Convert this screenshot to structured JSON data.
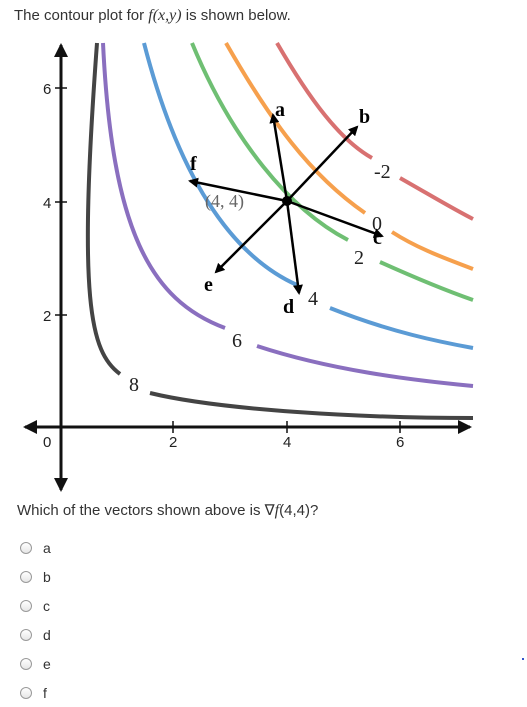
{
  "prompt": {
    "before": "The contour plot for ",
    "func": "f(x,y)",
    "after": " is shown below."
  },
  "diagram": {
    "point_label": "(4, 4)",
    "point": [
      4,
      4
    ],
    "x_ticks": [
      "0",
      "2",
      "4",
      "6"
    ],
    "y_ticks": [
      "2",
      "4",
      "6"
    ],
    "contours": [
      {
        "label": "8",
        "color": "#444444"
      },
      {
        "label": "6",
        "color": "#8a6fbf"
      },
      {
        "label": "4",
        "color": "#5b9bd5"
      },
      {
        "label": "2",
        "color": "#6fbf73"
      },
      {
        "label": "0",
        "color": "#f6a04d"
      },
      {
        "label": "-2",
        "color": "#d87171"
      }
    ],
    "vectors": [
      {
        "label": "a"
      },
      {
        "label": "b"
      },
      {
        "label": "c"
      },
      {
        "label": "d"
      },
      {
        "label": "e"
      },
      {
        "label": "f"
      }
    ]
  },
  "question": {
    "before": "Which of the vectors shown above is ",
    "grad": "∇",
    "func": "f",
    "after": "(4,4)?"
  },
  "options": [
    {
      "label": "a"
    },
    {
      "label": "b"
    },
    {
      "label": "c"
    },
    {
      "label": "d"
    },
    {
      "label": "e"
    },
    {
      "label": "f"
    }
  ]
}
